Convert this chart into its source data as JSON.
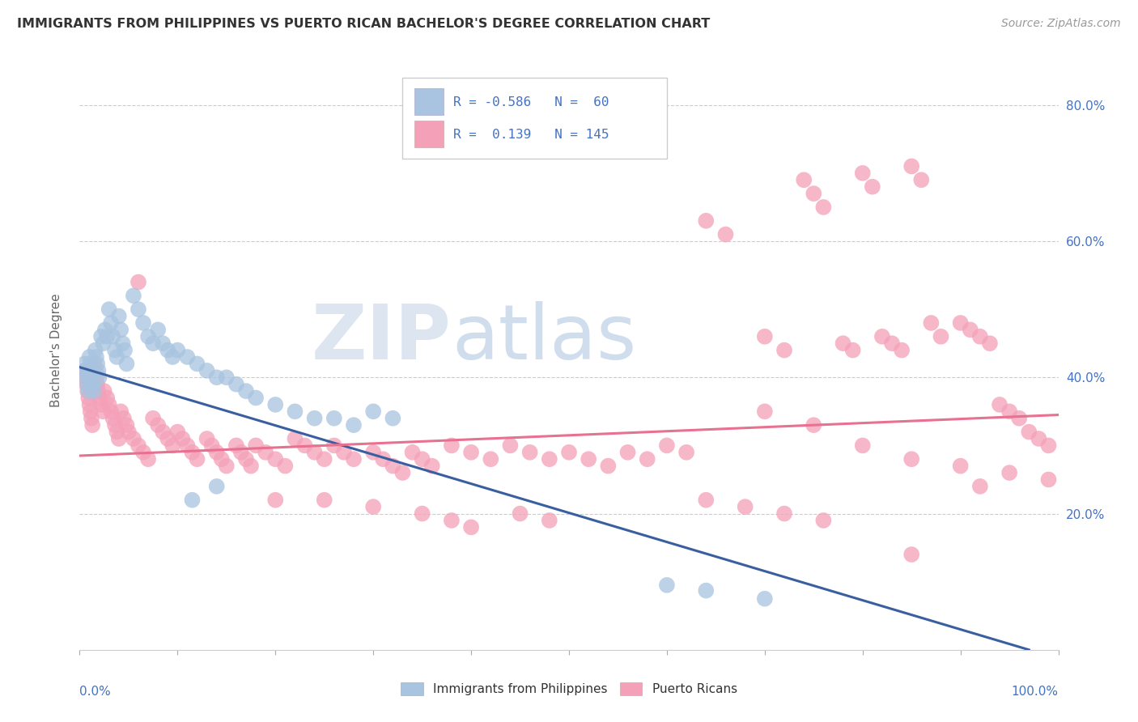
{
  "title": "IMMIGRANTS FROM PHILIPPINES VS PUERTO RICAN BACHELOR'S DEGREE CORRELATION CHART",
  "source": "Source: ZipAtlas.com",
  "ylabel": "Bachelor's Degree",
  "ytick_labels": [
    "20.0%",
    "40.0%",
    "60.0%",
    "80.0%"
  ],
  "ytick_values": [
    0.2,
    0.4,
    0.6,
    0.8
  ],
  "xlim": [
    0.0,
    1.0
  ],
  "ylim": [
    0.0,
    0.88
  ],
  "legend_blue_label": "Immigrants from Philippines",
  "legend_pink_label": "Puerto Ricans",
  "blue_color": "#a8c4e0",
  "pink_color": "#f4a0b8",
  "blue_line_color": "#3a5fa0",
  "pink_line_color": "#e87090",
  "text_color_blue": "#4472c4",
  "grid_color": "#cccccc",
  "background_color": "#ffffff",
  "blue_trend_x": [
    0.0,
    0.97
  ],
  "blue_trend_y": [
    0.415,
    0.0
  ],
  "pink_trend_x": [
    0.0,
    1.0
  ],
  "pink_trend_y": [
    0.285,
    0.345
  ],
  "blue_scatter": [
    [
      0.005,
      0.42
    ],
    [
      0.006,
      0.41
    ],
    [
      0.007,
      0.4
    ],
    [
      0.008,
      0.39
    ],
    [
      0.009,
      0.38
    ],
    [
      0.01,
      0.43
    ],
    [
      0.011,
      0.42
    ],
    [
      0.012,
      0.41
    ],
    [
      0.013,
      0.4
    ],
    [
      0.014,
      0.39
    ],
    [
      0.015,
      0.38
    ],
    [
      0.016,
      0.44
    ],
    [
      0.017,
      0.43
    ],
    [
      0.018,
      0.42
    ],
    [
      0.019,
      0.41
    ],
    [
      0.02,
      0.4
    ],
    [
      0.022,
      0.46
    ],
    [
      0.024,
      0.45
    ],
    [
      0.026,
      0.47
    ],
    [
      0.028,
      0.46
    ],
    [
      0.03,
      0.5
    ],
    [
      0.032,
      0.48
    ],
    [
      0.034,
      0.46
    ],
    [
      0.036,
      0.44
    ],
    [
      0.038,
      0.43
    ],
    [
      0.04,
      0.49
    ],
    [
      0.042,
      0.47
    ],
    [
      0.044,
      0.45
    ],
    [
      0.046,
      0.44
    ],
    [
      0.048,
      0.42
    ],
    [
      0.055,
      0.52
    ],
    [
      0.06,
      0.5
    ],
    [
      0.065,
      0.48
    ],
    [
      0.07,
      0.46
    ],
    [
      0.075,
      0.45
    ],
    [
      0.08,
      0.47
    ],
    [
      0.085,
      0.45
    ],
    [
      0.09,
      0.44
    ],
    [
      0.095,
      0.43
    ],
    [
      0.1,
      0.44
    ],
    [
      0.11,
      0.43
    ],
    [
      0.12,
      0.42
    ],
    [
      0.13,
      0.41
    ],
    [
      0.14,
      0.4
    ],
    [
      0.15,
      0.4
    ],
    [
      0.16,
      0.39
    ],
    [
      0.17,
      0.38
    ],
    [
      0.18,
      0.37
    ],
    [
      0.2,
      0.36
    ],
    [
      0.22,
      0.35
    ],
    [
      0.24,
      0.34
    ],
    [
      0.26,
      0.34
    ],
    [
      0.28,
      0.33
    ],
    [
      0.3,
      0.35
    ],
    [
      0.32,
      0.34
    ],
    [
      0.115,
      0.22
    ],
    [
      0.14,
      0.24
    ],
    [
      0.6,
      0.095
    ],
    [
      0.64,
      0.087
    ],
    [
      0.7,
      0.075
    ]
  ],
  "pink_scatter": [
    [
      0.005,
      0.41
    ],
    [
      0.006,
      0.4
    ],
    [
      0.007,
      0.39
    ],
    [
      0.008,
      0.38
    ],
    [
      0.009,
      0.37
    ],
    [
      0.01,
      0.36
    ],
    [
      0.011,
      0.35
    ],
    [
      0.012,
      0.34
    ],
    [
      0.013,
      0.33
    ],
    [
      0.015,
      0.42
    ],
    [
      0.016,
      0.41
    ],
    [
      0.017,
      0.4
    ],
    [
      0.018,
      0.39
    ],
    [
      0.019,
      0.38
    ],
    [
      0.02,
      0.37
    ],
    [
      0.022,
      0.36
    ],
    [
      0.024,
      0.35
    ],
    [
      0.025,
      0.38
    ],
    [
      0.028,
      0.37
    ],
    [
      0.03,
      0.36
    ],
    [
      0.032,
      0.35
    ],
    [
      0.034,
      0.34
    ],
    [
      0.036,
      0.33
    ],
    [
      0.038,
      0.32
    ],
    [
      0.04,
      0.31
    ],
    [
      0.042,
      0.35
    ],
    [
      0.045,
      0.34
    ],
    [
      0.048,
      0.33
    ],
    [
      0.05,
      0.32
    ],
    [
      0.055,
      0.31
    ],
    [
      0.06,
      0.3
    ],
    [
      0.065,
      0.29
    ],
    [
      0.07,
      0.28
    ],
    [
      0.075,
      0.34
    ],
    [
      0.08,
      0.33
    ],
    [
      0.085,
      0.32
    ],
    [
      0.09,
      0.31
    ],
    [
      0.095,
      0.3
    ],
    [
      0.06,
      0.54
    ],
    [
      0.1,
      0.32
    ],
    [
      0.105,
      0.31
    ],
    [
      0.11,
      0.3
    ],
    [
      0.115,
      0.29
    ],
    [
      0.12,
      0.28
    ],
    [
      0.13,
      0.31
    ],
    [
      0.135,
      0.3
    ],
    [
      0.14,
      0.29
    ],
    [
      0.145,
      0.28
    ],
    [
      0.15,
      0.27
    ],
    [
      0.16,
      0.3
    ],
    [
      0.165,
      0.29
    ],
    [
      0.17,
      0.28
    ],
    [
      0.175,
      0.27
    ],
    [
      0.18,
      0.3
    ],
    [
      0.19,
      0.29
    ],
    [
      0.2,
      0.28
    ],
    [
      0.21,
      0.27
    ],
    [
      0.22,
      0.31
    ],
    [
      0.23,
      0.3
    ],
    [
      0.24,
      0.29
    ],
    [
      0.25,
      0.28
    ],
    [
      0.26,
      0.3
    ],
    [
      0.27,
      0.29
    ],
    [
      0.28,
      0.28
    ],
    [
      0.3,
      0.29
    ],
    [
      0.31,
      0.28
    ],
    [
      0.32,
      0.27
    ],
    [
      0.33,
      0.26
    ],
    [
      0.34,
      0.29
    ],
    [
      0.35,
      0.28
    ],
    [
      0.36,
      0.27
    ],
    [
      0.38,
      0.3
    ],
    [
      0.4,
      0.29
    ],
    [
      0.42,
      0.28
    ],
    [
      0.44,
      0.3
    ],
    [
      0.46,
      0.29
    ],
    [
      0.48,
      0.28
    ],
    [
      0.5,
      0.29
    ],
    [
      0.52,
      0.28
    ],
    [
      0.54,
      0.27
    ],
    [
      0.2,
      0.22
    ],
    [
      0.25,
      0.22
    ],
    [
      0.3,
      0.21
    ],
    [
      0.35,
      0.2
    ],
    [
      0.38,
      0.19
    ],
    [
      0.4,
      0.18
    ],
    [
      0.45,
      0.2
    ],
    [
      0.48,
      0.19
    ],
    [
      0.56,
      0.29
    ],
    [
      0.58,
      0.28
    ],
    [
      0.6,
      0.3
    ],
    [
      0.62,
      0.29
    ],
    [
      0.64,
      0.63
    ],
    [
      0.66,
      0.61
    ],
    [
      0.7,
      0.46
    ],
    [
      0.72,
      0.44
    ],
    [
      0.74,
      0.69
    ],
    [
      0.75,
      0.67
    ],
    [
      0.76,
      0.65
    ],
    [
      0.78,
      0.45
    ],
    [
      0.79,
      0.44
    ],
    [
      0.8,
      0.7
    ],
    [
      0.81,
      0.68
    ],
    [
      0.82,
      0.46
    ],
    [
      0.83,
      0.45
    ],
    [
      0.84,
      0.44
    ],
    [
      0.85,
      0.71
    ],
    [
      0.86,
      0.69
    ],
    [
      0.87,
      0.48
    ],
    [
      0.88,
      0.46
    ],
    [
      0.9,
      0.48
    ],
    [
      0.91,
      0.47
    ],
    [
      0.92,
      0.46
    ],
    [
      0.93,
      0.45
    ],
    [
      0.94,
      0.36
    ],
    [
      0.95,
      0.35
    ],
    [
      0.96,
      0.34
    ],
    [
      0.97,
      0.32
    ],
    [
      0.98,
      0.31
    ],
    [
      0.99,
      0.3
    ],
    [
      0.7,
      0.35
    ],
    [
      0.75,
      0.33
    ],
    [
      0.8,
      0.3
    ],
    [
      0.85,
      0.28
    ],
    [
      0.9,
      0.27
    ],
    [
      0.95,
      0.26
    ],
    [
      0.99,
      0.25
    ],
    [
      0.64,
      0.22
    ],
    [
      0.68,
      0.21
    ],
    [
      0.72,
      0.2
    ],
    [
      0.76,
      0.19
    ],
    [
      0.85,
      0.14
    ],
    [
      0.92,
      0.24
    ]
  ]
}
